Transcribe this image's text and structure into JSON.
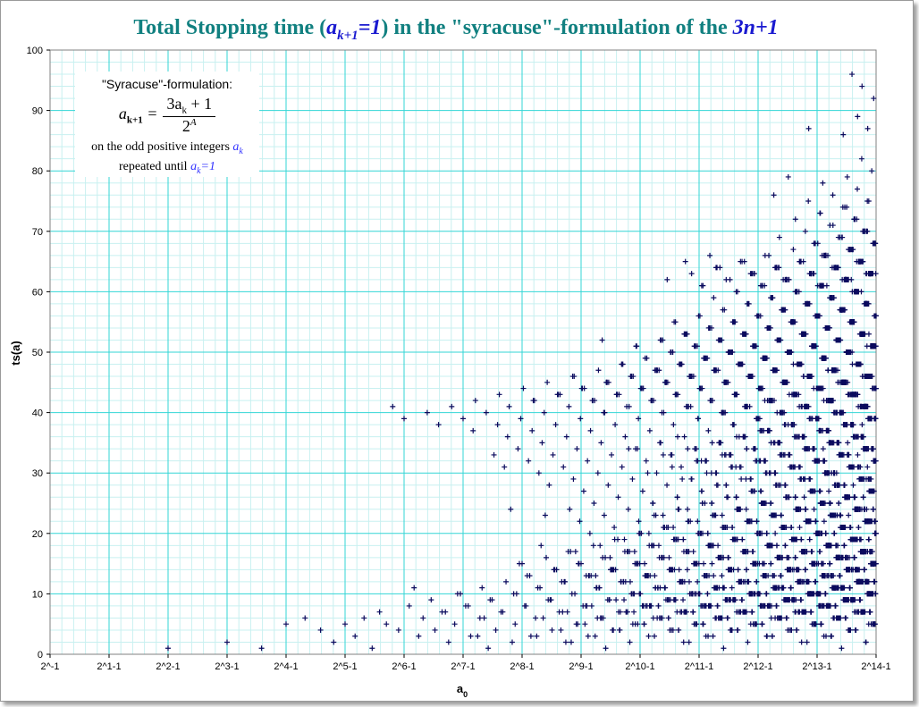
{
  "chart_data": {
    "type": "scatter",
    "title_parts": {
      "pre": "Total Stopping time (",
      "cond": "a",
      "cond_sub": "k+1",
      "cond_post": "=1",
      "mid": ") in the \"syracuse\"-formulation of the ",
      "problem": "3n+1"
    },
    "xlabel": "a",
    "xlabel_sub": "0",
    "ylabel": "ts(a)",
    "x_scale": "log2",
    "x_tick_labels": [
      "2^-1",
      "2^1-1",
      "2^2-1",
      "2^3-1",
      "2^4-1",
      "2^5-1",
      "2^6-1",
      "2^7-1",
      "2^8-1",
      "2^9-1",
      "2^10-1",
      "2^11-1",
      "2^12-1",
      "2^13-1",
      "2^14-1"
    ],
    "ylim": [
      0,
      100
    ],
    "y_ticks": [
      0,
      10,
      20,
      30,
      40,
      50,
      60,
      70,
      80,
      90,
      100
    ],
    "grid": "major and minor",
    "marker": "+",
    "marker_color": "#0b0b5e",
    "grid_color": "#33d6d6",
    "minor_grid_color": "#c8f0f0",
    "annotation": {
      "line1": "\"Syracuse\"-formulation:",
      "lhs": "a",
      "lhs_sub": "k+1",
      "num": "3a",
      "num_sub": "k",
      "num_post": " + 1",
      "den": "2",
      "den_sup": "A",
      "line3_pre": "on the odd positive integers ",
      "line3_var": "a",
      "line3_var_sub": "k",
      "line4_pre": "repeated until ",
      "line4_var": "a",
      "line4_var_sub": "k",
      "line4_post": "=1"
    },
    "series": [
      {
        "description": "odd starting values a0 = 1, 3, 5, ... up to about 2^13.3; y = number of syracuse steps until a_k = 1",
        "points": [
          [
            1,
            1
          ],
          [
            3,
            2
          ],
          [
            5,
            1
          ],
          [
            7,
            5
          ],
          [
            9,
            6
          ],
          [
            11,
            4
          ],
          [
            13,
            2
          ],
          [
            15,
            5
          ],
          [
            17,
            3
          ],
          [
            19,
            6
          ],
          [
            21,
            1
          ],
          [
            23,
            7
          ],
          [
            25,
            5
          ],
          [
            27,
            41
          ],
          [
            29,
            4
          ],
          [
            31,
            39
          ],
          [
            33,
            8
          ],
          [
            35,
            11
          ],
          [
            37,
            3
          ],
          [
            39,
            6
          ],
          [
            41,
            40
          ],
          [
            43,
            9
          ],
          [
            45,
            4
          ],
          [
            47,
            38
          ],
          [
            49,
            7
          ],
          [
            51,
            7
          ],
          [
            53,
            2
          ],
          [
            55,
            41
          ],
          [
            57,
            5
          ],
          [
            59,
            10
          ],
          [
            61,
            10
          ],
          [
            63,
            39
          ]
        ]
      }
    ]
  }
}
